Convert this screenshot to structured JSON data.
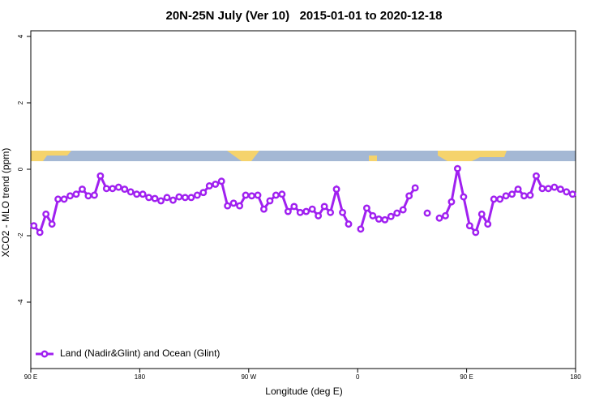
{
  "chart_data": {
    "type": "line",
    "title": "20N-25N July (Ver 10)   2015-01-01 to 2020-12-18",
    "x_label": "Longitude (deg E)",
    "y_label": "XCO2 - MLO trend (ppm)",
    "x": [
      92.5,
      97.5,
      102.5,
      107.5,
      112.5,
      117.5,
      122.5,
      127.5,
      132.5,
      137.5,
      142.5,
      147.5,
      152.5,
      157.5,
      162.5,
      167.5,
      172.5,
      177.5,
      182.5,
      187.5,
      192.5,
      197.5,
      202.5,
      207.5,
      212.5,
      217.5,
      222.5,
      227.5,
      232.5,
      237.5,
      242.5,
      247.5,
      252.5,
      257.5,
      262.5,
      267.5,
      272.5,
      277.5,
      282.5,
      287.5,
      292.5,
      297.5,
      302.5,
      307.5,
      312.5,
      317.5,
      322.5,
      327.5,
      332.5,
      337.5,
      342.5,
      347.5,
      352.5,
      357.5,
      362.5,
      367.5,
      372.5,
      377.5,
      382.5,
      387.5,
      392.5,
      397.5,
      402.5,
      407.5,
      412.5,
      417.5,
      422.5,
      427.5,
      432.5,
      437.5,
      442.5,
      447.5,
      452.5,
      457.5,
      462.5,
      467.5,
      472.5,
      477.5,
      482.5,
      487.5,
      492.5,
      497.5,
      502.5,
      507.5,
      512.5,
      517.5,
      522.5,
      527.5,
      532.5,
      537.5
    ],
    "series": [
      {
        "name": "Land (Nadir&Glint) and Ocean (Glint)",
        "color": "#a020f0",
        "values": [
          -1.7,
          -1.9,
          -1.35,
          -1.65,
          -0.9,
          -0.9,
          -0.8,
          -0.75,
          -0.6,
          -0.8,
          -0.78,
          -0.2,
          -0.58,
          -0.58,
          -0.54,
          -0.6,
          -0.68,
          -0.75,
          -0.75,
          -0.85,
          -0.88,
          -0.95,
          -0.85,
          -0.93,
          -0.83,
          -0.85,
          -0.85,
          -0.78,
          -0.7,
          -0.5,
          -0.45,
          -0.36,
          -1.1,
          -1.02,
          -1.1,
          -0.78,
          -0.8,
          -0.78,
          -1.2,
          -0.95,
          -0.78,
          -0.75,
          -1.27,
          -1.12,
          -1.3,
          -1.27,
          -1.2,
          -1.4,
          -1.12,
          -1.3,
          -0.6,
          -1.3,
          -1.65,
          null,
          -1.8,
          -1.17,
          -1.4,
          -1.5,
          -1.52,
          -1.42,
          -1.32,
          -1.22,
          -0.8,
          -0.56,
          null,
          -1.32,
          null,
          -1.47,
          -1.4,
          -0.98,
          0.02,
          -0.83,
          -1.7,
          -1.9,
          -1.35,
          -1.65,
          -0.9,
          -0.9,
          -0.8,
          -0.75,
          -0.6,
          -0.8,
          -0.78,
          -0.2,
          -0.58,
          -0.58,
          -0.54,
          -0.6,
          -0.68,
          -0.75
        ]
      }
    ],
    "xlim": [
      90,
      540
    ],
    "xticks": [
      {
        "value": 90,
        "label": "90 E"
      },
      180,
      {
        "value": 270,
        "label": "90 W"
      },
      {
        "value": 360,
        "label": "0"
      },
      {
        "value": 450,
        "label": "90 E"
      },
      {
        "value": 540,
        "label": "180"
      }
    ],
    "ylim": [
      -6,
      4.17
    ],
    "yticks": [
      -4,
      -2,
      0,
      2,
      4
    ],
    "legend": "bottom-left"
  }
}
